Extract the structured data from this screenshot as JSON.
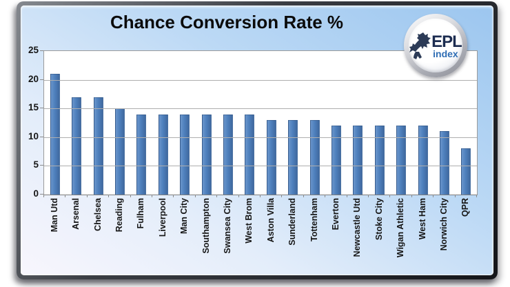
{
  "title": "Chance Conversion Rate %",
  "logo": {
    "line1": "EPL",
    "line2": "index"
  },
  "chart_data": {
    "type": "bar",
    "title": "Chance Conversion Rate %",
    "categories": [
      "Man Utd",
      "Arsenal",
      "Chelsea",
      "Reading",
      "Fulham",
      "Liverpool",
      "Man City",
      "Southampton",
      "Swansea City",
      "West Brom",
      "Aston Villa",
      "Sunderland",
      "Tottenham",
      "Everton",
      "Newcastle Utd",
      "Stoke City",
      "Wigan Athletic",
      "West Ham",
      "Norwich City",
      "QPR"
    ],
    "values": [
      21,
      17,
      17,
      15,
      14,
      14,
      14,
      14,
      14,
      14,
      13,
      13,
      13,
      12,
      12,
      12,
      12,
      12,
      11,
      8
    ],
    "xlabel": "",
    "ylabel": "",
    "ylim": [
      0,
      25
    ],
    "yticks": [
      0,
      5,
      10,
      15,
      20,
      25
    ],
    "grid": true,
    "legend": false,
    "x_label_rotation": -90
  },
  "colors": {
    "bar": "#4f81bd",
    "bar_border": "#3a6399",
    "plot_background": "#ffffff",
    "gridline": "#aeaeae",
    "axis": "#8a8a8a",
    "panel_gradient_top_right": "#9cc6ef",
    "panel_gradient_bottom_left": "#f8f6fd",
    "frame": "#141519",
    "title_text": "#0b0b0b",
    "logo_epl_text": "#1c2c50",
    "logo_index_text": "#2e6db4"
  }
}
